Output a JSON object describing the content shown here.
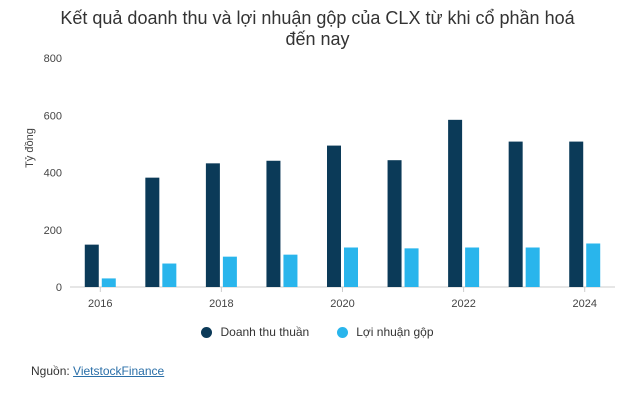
{
  "chart_data": {
    "type": "bar",
    "title_lines": [
      "Kết quả doanh thu và lợi nhuận gộp của CLX từ khi cổ phần hoá",
      "đến nay"
    ],
    "ylabel": "Tỷ đồng",
    "xlabel": "",
    "ylim": [
      0,
      800
    ],
    "yticks": [
      0,
      200,
      400,
      600,
      800
    ],
    "categories": [
      "2016",
      "2017",
      "2018",
      "2019",
      "2020",
      "2021",
      "2022",
      "2023",
      "2024"
    ],
    "xtick_labels": [
      "2016",
      "",
      "2018",
      "",
      "2020",
      "",
      "2022",
      "",
      "2024"
    ],
    "series": [
      {
        "name": "Doanh thu thuần",
        "color": "#0b3a58",
        "values": [
          148,
          382,
          432,
          441,
          494,
          443,
          584,
          508,
          508
        ]
      },
      {
        "name": "Lợi nhuận gộp",
        "color": "#29b5ec",
        "values": [
          30,
          82,
          106,
          113,
          138,
          135,
          138,
          138,
          152
        ]
      }
    ],
    "grid": false,
    "legend_position": "bottom"
  },
  "source": {
    "label": "Nguồn:",
    "link_text": "VietstockFinance"
  }
}
